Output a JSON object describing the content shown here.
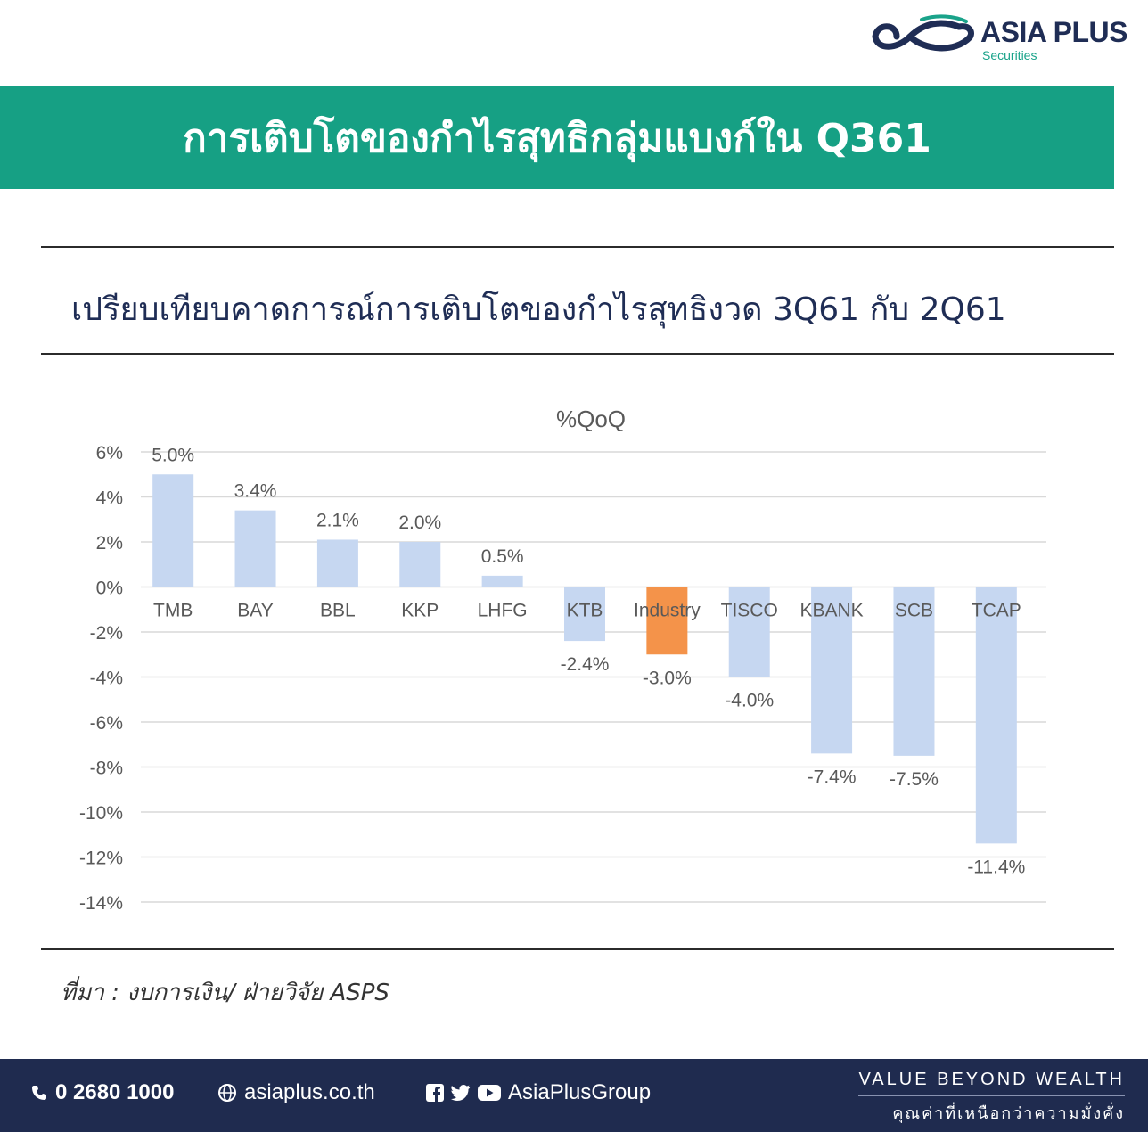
{
  "logo": {
    "name": "ASIA PLUS",
    "sub": "Securities",
    "colors": {
      "navy": "#1f2d55",
      "teal": "#1aa38a"
    }
  },
  "banner": {
    "title": "การเติบโตของกำไรสุทธิกลุ่มแบงก์ใน Q361",
    "color": "#16a084"
  },
  "subtitle": "เปรียบเทียบคาดการณ์การเติบโตของกำไรสุทธิงวด 3Q61 กับ 2Q61",
  "chart_data": {
    "type": "bar",
    "title": "%QoQ",
    "categories": [
      "TMB",
      "BAY",
      "BBL",
      "KKP",
      "LHFG",
      "KTB",
      "Industry",
      "TISCO",
      "KBANK",
      "SCB",
      "TCAP"
    ],
    "values": [
      5.0,
      3.4,
      2.1,
      2.0,
      0.5,
      -2.4,
      -3.0,
      -4.0,
      -7.4,
      -7.5,
      -11.4
    ],
    "value_labels": [
      "5.0%",
      "3.4%",
      "2.1%",
      "2.0%",
      "0.5%",
      "-2.4%",
      "-3.0%",
      "-4.0%",
      "-7.4%",
      "-7.5%",
      "-11.4%"
    ],
    "yticks": [
      "6%",
      "4%",
      "2%",
      "0%",
      "-2%",
      "-4%",
      "-6%",
      "-8%",
      "-10%",
      "-12%",
      "-14%"
    ],
    "ylim": [
      -14,
      6
    ],
    "grid": true,
    "bar_color": "#c6d7f1",
    "highlight_color": "#f4934a",
    "highlight": "Industry"
  },
  "source": "ที่มา : งบการเงิน/ ฝ่ายวิจัย ASPS",
  "footer": {
    "phone": "0 2680 1000",
    "website": "asiaplus.co.th",
    "social": "AsiaPlusGroup",
    "tagline_en": "VALUE BEYOND WEALTH",
    "tagline_th": "คุณค่าที่เหนือกว่าความมั่งคั่ง"
  }
}
